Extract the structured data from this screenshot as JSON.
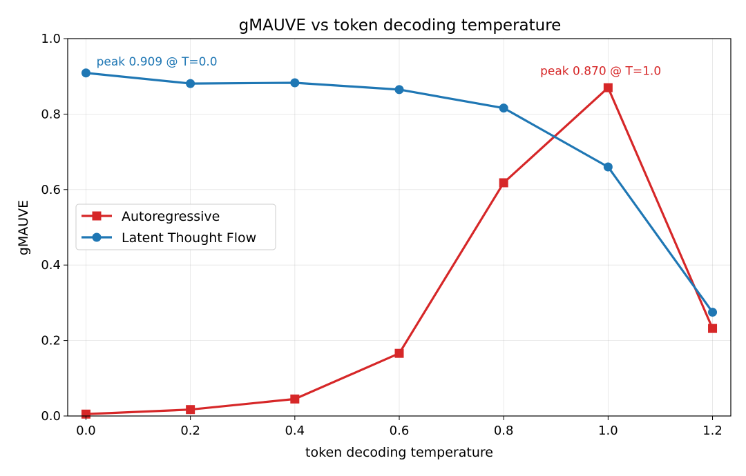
{
  "chart_data": {
    "type": "line",
    "title": "gMAUVE vs token decoding temperature",
    "xlabel": "token decoding temperature",
    "ylabel": "gMAUVE",
    "x": [
      0.0,
      0.2,
      0.4,
      0.6,
      0.8,
      1.0,
      1.2
    ],
    "xlim": [
      -0.035,
      1.235
    ],
    "ylim": [
      0.0,
      1.0
    ],
    "xticks": [
      "0.0",
      "0.2",
      "0.4",
      "0.6",
      "0.8",
      "1.0",
      "1.2"
    ],
    "yticks": [
      "0.0",
      "0.2",
      "0.4",
      "0.6",
      "0.8",
      "1.0"
    ],
    "grid": true,
    "legend_position": "center-left",
    "series": [
      {
        "name": "Autoregressive",
        "color": "#d62728",
        "marker": "square",
        "values": [
          0.005,
          0.017,
          0.045,
          0.166,
          0.618,
          0.87,
          0.232
        ]
      },
      {
        "name": "Latent Thought Flow",
        "color": "#1f77b4",
        "marker": "circle",
        "values": [
          0.909,
          0.881,
          0.883,
          0.865,
          0.816,
          0.66,
          0.275
        ]
      }
    ],
    "annotations": [
      {
        "text": "peak 0.909 @ T=0.0",
        "color": "#1f77b4",
        "x": 0.02,
        "y": 0.94
      },
      {
        "text": "peak 0.870 @ T=1.0",
        "color": "#d62728",
        "x": 0.87,
        "y": 0.915
      }
    ]
  }
}
